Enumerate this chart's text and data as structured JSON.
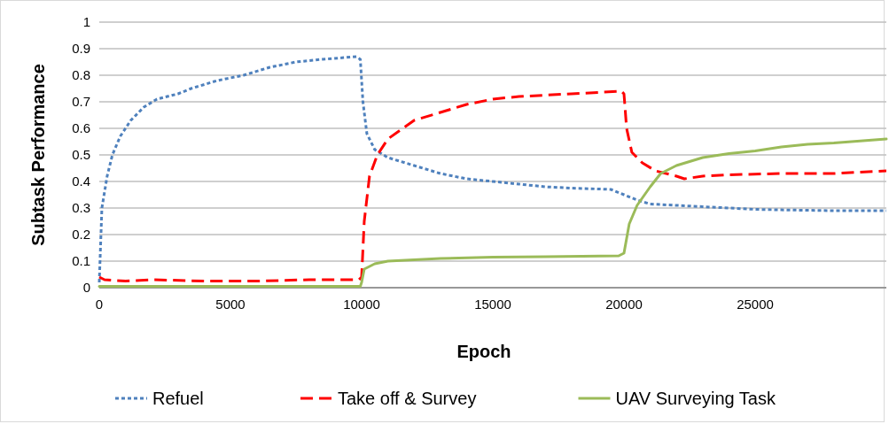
{
  "chart_data": {
    "type": "line",
    "xlabel": "Epoch",
    "ylabel": "Subtask Performance",
    "xlim": [
      0,
      30000
    ],
    "xticks": [
      0,
      5000,
      10000,
      15000,
      20000,
      25000
    ],
    "ylim": [
      0,
      1
    ],
    "yticks": [
      0,
      0.1,
      0.2,
      0.3,
      0.4,
      0.5,
      0.6,
      0.7,
      0.8,
      0.9,
      1
    ],
    "grid": "y",
    "legend": "bottom",
    "series": [
      {
        "name": "Refuel",
        "color": "#4f81bd",
        "line_style": "dotted",
        "x": [
          0,
          100,
          300,
          500,
          800,
          1200,
          1700,
          2200,
          3000,
          3500,
          4500,
          5500,
          6500,
          7500,
          8500,
          9800,
          9950,
          10050,
          10200,
          10500,
          11000,
          12000,
          13000,
          14000,
          15000,
          16000,
          17000,
          18000,
          19500,
          20000,
          20500,
          21000,
          22000,
          23000,
          24000,
          25000,
          26000,
          28000,
          30000
        ],
        "values": [
          0.02,
          0.3,
          0.42,
          0.5,
          0.57,
          0.63,
          0.68,
          0.71,
          0.73,
          0.75,
          0.78,
          0.8,
          0.83,
          0.85,
          0.86,
          0.87,
          0.86,
          0.7,
          0.58,
          0.52,
          0.49,
          0.46,
          0.43,
          0.41,
          0.4,
          0.39,
          0.38,
          0.375,
          0.37,
          0.35,
          0.33,
          0.315,
          0.31,
          0.305,
          0.3,
          0.295,
          0.293,
          0.29,
          0.29
        ]
      },
      {
        "name": "Take off & Survey",
        "color": "#ff0000",
        "line_style": "dashed",
        "x": [
          0,
          200,
          1000,
          2000,
          4000,
          6000,
          8000,
          9900,
          10000,
          10100,
          10300,
          10600,
          11000,
          12000,
          13000,
          14000,
          15000,
          16000,
          17000,
          18000,
          19000,
          19900,
          20000,
          20100,
          20300,
          20700,
          21200,
          22000,
          22300,
          23000,
          24000,
          26000,
          28000,
          30000
        ],
        "values": [
          0.04,
          0.03,
          0.025,
          0.03,
          0.025,
          0.025,
          0.03,
          0.03,
          0.04,
          0.25,
          0.42,
          0.5,
          0.56,
          0.63,
          0.66,
          0.69,
          0.71,
          0.72,
          0.725,
          0.73,
          0.735,
          0.74,
          0.73,
          0.6,
          0.51,
          0.47,
          0.44,
          0.42,
          0.41,
          0.42,
          0.425,
          0.43,
          0.43,
          0.44
        ]
      },
      {
        "name": "UAV Surveying Task",
        "color": "#9bbb59",
        "line_style": "solid",
        "x": [
          0,
          9950,
          10000,
          10100,
          10500,
          11000,
          12000,
          13000,
          15000,
          17000,
          19800,
          20000,
          20200,
          20500,
          21000,
          21400,
          22000,
          23000,
          24000,
          25000,
          26000,
          27000,
          28000,
          30000
        ],
        "values": [
          0.005,
          0.005,
          0.02,
          0.07,
          0.09,
          0.1,
          0.105,
          0.11,
          0.115,
          0.117,
          0.12,
          0.13,
          0.24,
          0.31,
          0.38,
          0.43,
          0.46,
          0.49,
          0.505,
          0.515,
          0.53,
          0.54,
          0.545,
          0.56
        ]
      }
    ]
  }
}
